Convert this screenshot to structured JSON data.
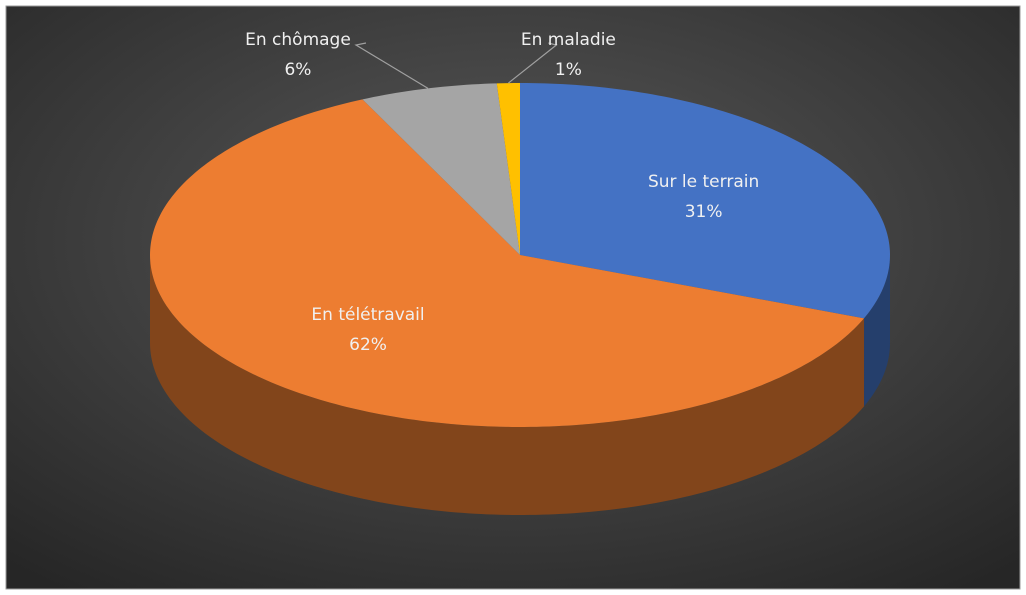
{
  "chart_data": {
    "type": "pie",
    "categories": [
      "Sur le terrain",
      "En télétravail",
      "En chômage",
      "En maladie"
    ],
    "values": [
      31,
      62,
      6,
      1
    ],
    "value_labels": [
      "31%",
      "62%",
      "6%",
      "1%"
    ],
    "colors": [
      "#4472c4",
      "#ed7d31",
      "#a5a5a5",
      "#ffc000"
    ],
    "three_d": true
  }
}
